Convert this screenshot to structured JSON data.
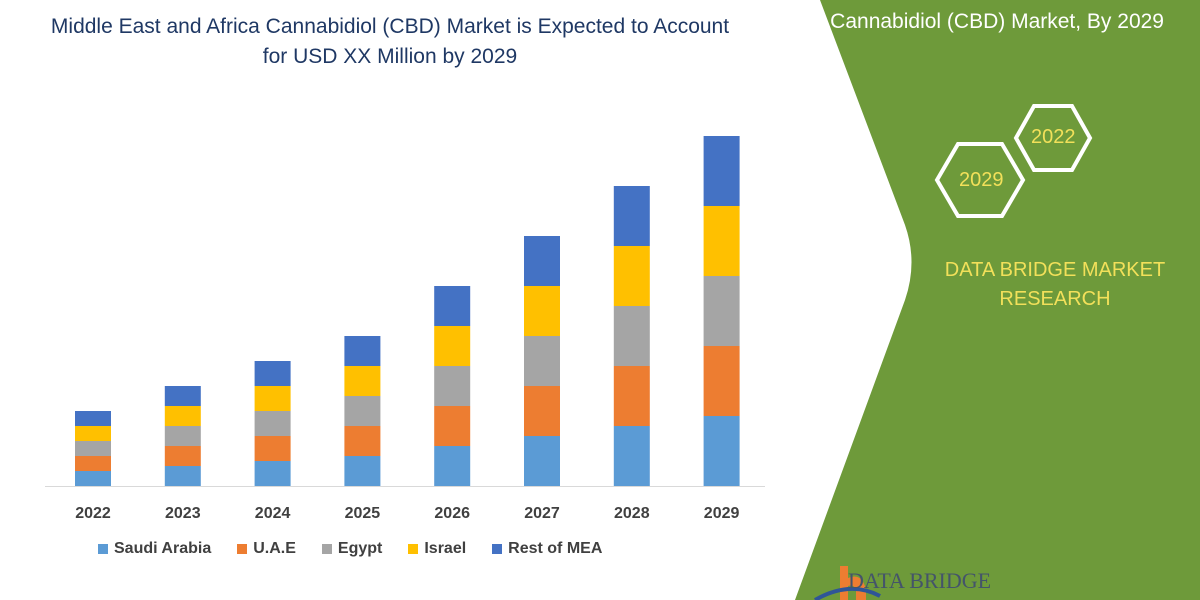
{
  "title": "Middle East and Africa Cannabidiol (CBD) Market is Expected to Account for USD XX Million by 2029",
  "side_panel": {
    "title": "Cannabidiol (CBD) Market, By 2029",
    "hex_1": "2022",
    "hex_2": "2029",
    "brand": "DATA BRIDGE MARKET RESEARCH",
    "logo_text": "DATA BRIDGE",
    "panel_color": "#6e9a3a"
  },
  "chart_data": {
    "type": "bar",
    "stacked": true,
    "title": "Middle East and Africa Cannabidiol (CBD) Market is Expected to Account for USD XX Million by 2029",
    "categories": [
      "2022",
      "2023",
      "2024",
      "2025",
      "2026",
      "2027",
      "2028",
      "2029"
    ],
    "y_axis_shown": false,
    "grid": false,
    "legend_position": "bottom",
    "series": [
      {
        "name": "Saudi Arabia",
        "color": "#5b9bd5",
        "values": [
          1.5,
          2,
          2.5,
          3,
          4,
          5,
          6,
          7
        ]
      },
      {
        "name": "U.A.E",
        "color": "#ed7d31",
        "values": [
          1.5,
          2,
          2.5,
          3,
          4,
          5,
          6,
          7
        ]
      },
      {
        "name": "Egypt",
        "color": "#a5a5a5",
        "values": [
          1.5,
          2,
          2.5,
          3,
          4,
          5,
          6,
          7
        ]
      },
      {
        "name": "Israel",
        "color": "#ffc000",
        "values": [
          1.5,
          2,
          2.5,
          3,
          4,
          5,
          6,
          7
        ]
      },
      {
        "name": "Rest of MEA",
        "color": "#4472c4",
        "values": [
          1.5,
          2,
          2.5,
          3,
          4,
          5,
          6,
          7
        ]
      }
    ]
  }
}
